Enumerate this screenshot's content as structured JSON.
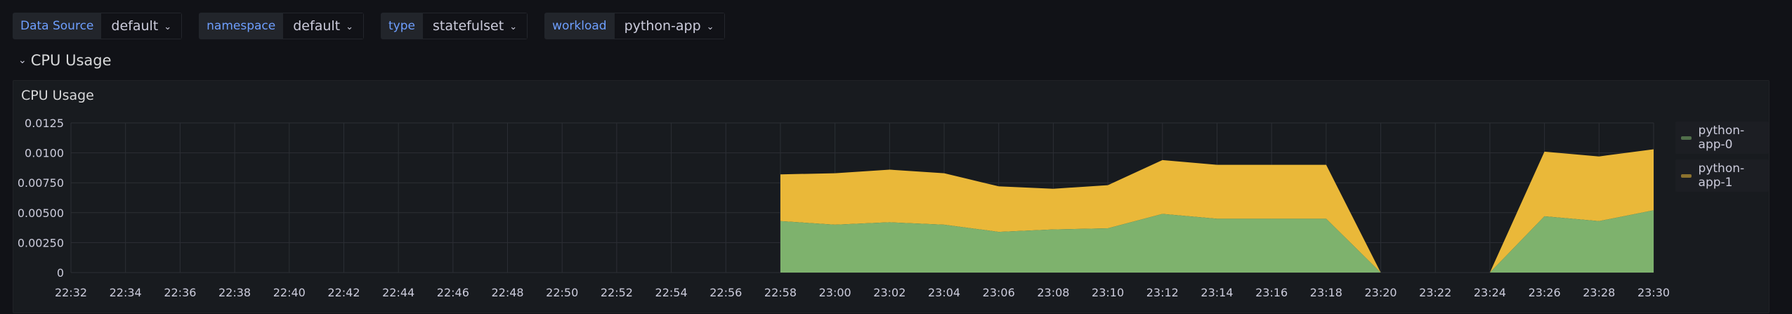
{
  "variables": [
    {
      "label": "Data Source",
      "value": "default"
    },
    {
      "label": "namespace",
      "value": "default"
    },
    {
      "label": "type",
      "value": "statefulset"
    },
    {
      "label": "workload",
      "value": "python-app"
    }
  ],
  "row": {
    "title": "CPU Usage"
  },
  "panel": {
    "title": "CPU Usage"
  },
  "colors": {
    "series0": "#7eb26d",
    "series1": "#eab839",
    "grid": "#2c2f35",
    "text": "#ccccdc"
  },
  "chart_data": {
    "type": "area",
    "stacked": true,
    "title": "CPU Usage",
    "xlabel": "",
    "ylabel": "",
    "ylim": [
      0,
      0.0125
    ],
    "yticks": [
      "0",
      "0.00250",
      "0.00500",
      "0.00750",
      "0.0100",
      "0.0125"
    ],
    "x": [
      "22:32",
      "22:34",
      "22:36",
      "22:38",
      "22:40",
      "22:42",
      "22:44",
      "22:46",
      "22:48",
      "22:50",
      "22:52",
      "22:54",
      "22:56",
      "22:58",
      "23:00",
      "23:02",
      "23:04",
      "23:06",
      "23:08",
      "23:10",
      "23:12",
      "23:14",
      "23:16",
      "23:18",
      "23:20",
      "23:22",
      "23:24",
      "23:26",
      "23:28",
      "23:30"
    ],
    "series": [
      {
        "name": "python-app-0",
        "values": [
          null,
          null,
          null,
          null,
          null,
          null,
          null,
          null,
          null,
          null,
          null,
          null,
          null,
          0.0043,
          0.004,
          0.0042,
          0.004,
          0.0034,
          0.0036,
          0.0037,
          0.0049,
          0.0045,
          0.0045,
          0.0045,
          0.0,
          null,
          0.0,
          0.0047,
          0.0043,
          0.0052
        ]
      },
      {
        "name": "python-app-1",
        "values": [
          null,
          null,
          null,
          null,
          null,
          null,
          null,
          null,
          null,
          null,
          null,
          null,
          null,
          0.0039,
          0.0043,
          0.0044,
          0.0043,
          0.0038,
          0.0034,
          0.0036,
          0.0045,
          0.0045,
          0.0045,
          0.0045,
          0.0,
          null,
          0.0,
          0.0054,
          0.0054,
          0.0051
        ]
      }
    ],
    "legend": "right",
    "grid": true
  }
}
